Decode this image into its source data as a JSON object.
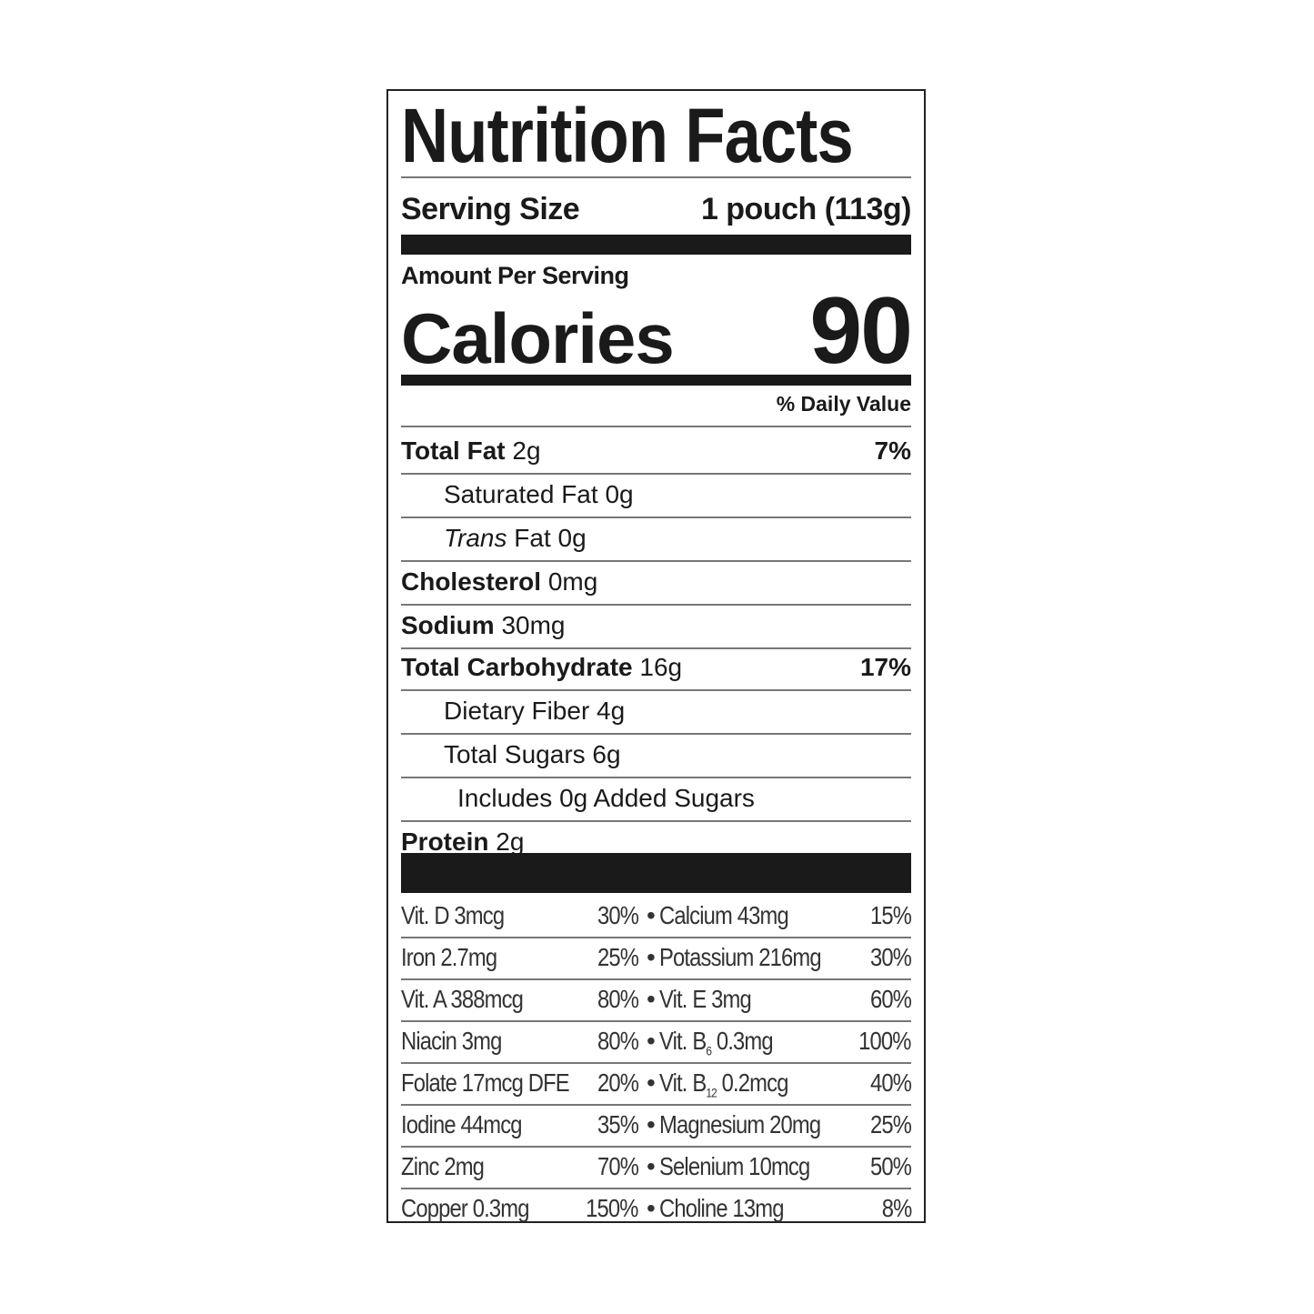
{
  "title": "Nutrition Facts",
  "serving": {
    "label": "Serving Size",
    "value": "1 pouch (113g)"
  },
  "amount_per_serving": "Amount Per Serving",
  "calories": {
    "label": "Calories",
    "value": "90"
  },
  "daily_value_header": "% Daily Value",
  "nutrients": [
    {
      "name": "Total Fat",
      "amount": "2g",
      "dv": "7%",
      "bold": true,
      "indent": 0
    },
    {
      "name": "Saturated Fat",
      "amount": "0g",
      "dv": "",
      "bold": false,
      "indent": 1
    },
    {
      "name": "Trans",
      "name_suffix": "Fat",
      "amount": "0g",
      "dv": "",
      "bold": false,
      "indent": 1,
      "italic": true
    },
    {
      "name": "Cholesterol",
      "amount": "0mg",
      "dv": "",
      "bold": true,
      "indent": 0
    },
    {
      "name": "Sodium",
      "amount": "30mg",
      "dv": "",
      "bold": true,
      "indent": 0
    },
    {
      "name": "Total Carbohydrate",
      "amount": "16g",
      "dv": "17%",
      "bold": true,
      "indent": 0
    },
    {
      "name": "Dietary Fiber",
      "amount": "4g",
      "dv": "",
      "bold": false,
      "indent": 1
    },
    {
      "name": "Total Sugars",
      "amount": "6g",
      "dv": "",
      "bold": false,
      "indent": 1
    },
    {
      "name": "Includes 0g Added Sugars",
      "amount": "",
      "dv": "",
      "bold": false,
      "indent": 2
    },
    {
      "name": "Protein",
      "amount": "2g",
      "dv": "",
      "bold": true,
      "indent": 0
    }
  ],
  "vitamins": [
    {
      "left": "Vit. D 3mcg",
      "left_dv": "30%",
      "right": "Calcium 43mg",
      "right_dv": "15%"
    },
    {
      "left": "Iron 2.7mg",
      "left_dv": "25%",
      "right": "Potassium 216mg",
      "right_dv": "30%"
    },
    {
      "left": "Vit. A 388mcg",
      "left_dv": "80%",
      "right": "Vit. E 3mg",
      "right_dv": "60%"
    },
    {
      "left": "Niacin 3mg",
      "left_dv": "80%",
      "right_pre": "Vit. B",
      "right_sub": "6",
      "right": " 0.3mg",
      "right_dv": "100%"
    },
    {
      "left": "Folate 17mcg DFE",
      "left_dv": "20%",
      "right_pre": "Vit. B",
      "right_sub": "12",
      "right": " 0.2mcg",
      "right_dv": "40%"
    },
    {
      "left": "Iodine 44mcg",
      "left_dv": "35%",
      "right": "Magnesium 20mg",
      "right_dv": "25%"
    },
    {
      "left": "Zinc 2mg",
      "left_dv": "70%",
      "right": "Selenium 10mcg",
      "right_dv": "50%"
    },
    {
      "left": "Copper 0.3mg",
      "left_dv": "150%",
      "right": "Choline 13mg",
      "right_dv": "8%"
    }
  ],
  "bullet": "•"
}
